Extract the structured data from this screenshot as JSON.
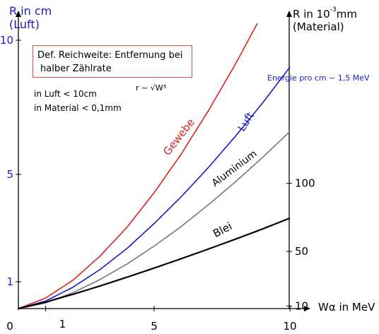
{
  "chart_data": {
    "type": "line",
    "left_axis": {
      "label_lines": [
        "R in cm",
        "(Luft)"
      ],
      "ticks": [
        {
          "value": 1,
          "label": "1"
        },
        {
          "value": 5,
          "label": "5"
        },
        {
          "value": 10,
          "label": "10"
        }
      ],
      "ylim": [
        0,
        10.5
      ],
      "color": "#1a1acc"
    },
    "right_axis": {
      "label_line1": "R in 10",
      "label_sup": "-3",
      "label_line1_end": "mm",
      "label_line2": "(Material)",
      "ticks": [
        {
          "value": 10,
          "label": "10"
        },
        {
          "value": 50,
          "label": "50"
        },
        {
          "value": 100,
          "label": "100"
        }
      ]
    },
    "x_axis": {
      "label": "Wα in MeV",
      "ticks": [
        {
          "value": 0,
          "label": "0"
        },
        {
          "value": 1,
          "label": "1"
        },
        {
          "value": 5,
          "label": "5"
        },
        {
          "value": 10,
          "label": "10"
        }
      ],
      "xlim": [
        0,
        10.8
      ]
    },
    "series": [
      {
        "name": "Gewebe",
        "color": "#e02020",
        "x": [
          0,
          1,
          2,
          3,
          4,
          5,
          6,
          7,
          8,
          8.8
        ],
        "y": [
          0.0,
          0.39,
          1.05,
          1.95,
          3.03,
          4.32,
          5.76,
          7.38,
          9.12,
          10.63
        ]
      },
      {
        "name": "Luft",
        "color": "#1a1acc",
        "x": [
          0,
          1,
          2,
          3,
          4,
          5,
          6,
          7,
          8,
          9,
          10
        ],
        "y": [
          0.0,
          0.28,
          0.79,
          1.45,
          2.24,
          3.17,
          4.17,
          5.26,
          6.43,
          7.67,
          9.0
        ]
      },
      {
        "name": "Aluminium",
        "color": "#777777",
        "x": [
          0,
          1,
          2,
          3,
          4,
          5,
          6,
          7,
          8,
          9,
          10
        ],
        "y": [
          0.0,
          0.21,
          0.59,
          1.08,
          1.66,
          2.33,
          3.06,
          3.87,
          4.73,
          5.64,
          6.6
        ]
      },
      {
        "name": "Blei",
        "color": "#000000",
        "x": [
          0,
          1,
          2,
          3,
          4,
          5,
          6,
          7,
          8,
          9,
          10
        ],
        "y": [
          0.0,
          0.24,
          0.53,
          0.84,
          1.17,
          1.51,
          1.86,
          2.22,
          2.59,
          2.97,
          3.37
        ]
      }
    ]
  },
  "info": {
    "definition_line1": "Def. Reichweite: Entfernung bei",
    "definition_line2": "halber Zählrate",
    "luft_range": "in Luft < 10cm",
    "material_range": "in Material < 0,1mm",
    "formula": "r ~ √W³",
    "energy_note": "Energie pro cm ~ 1,5 MeV"
  }
}
